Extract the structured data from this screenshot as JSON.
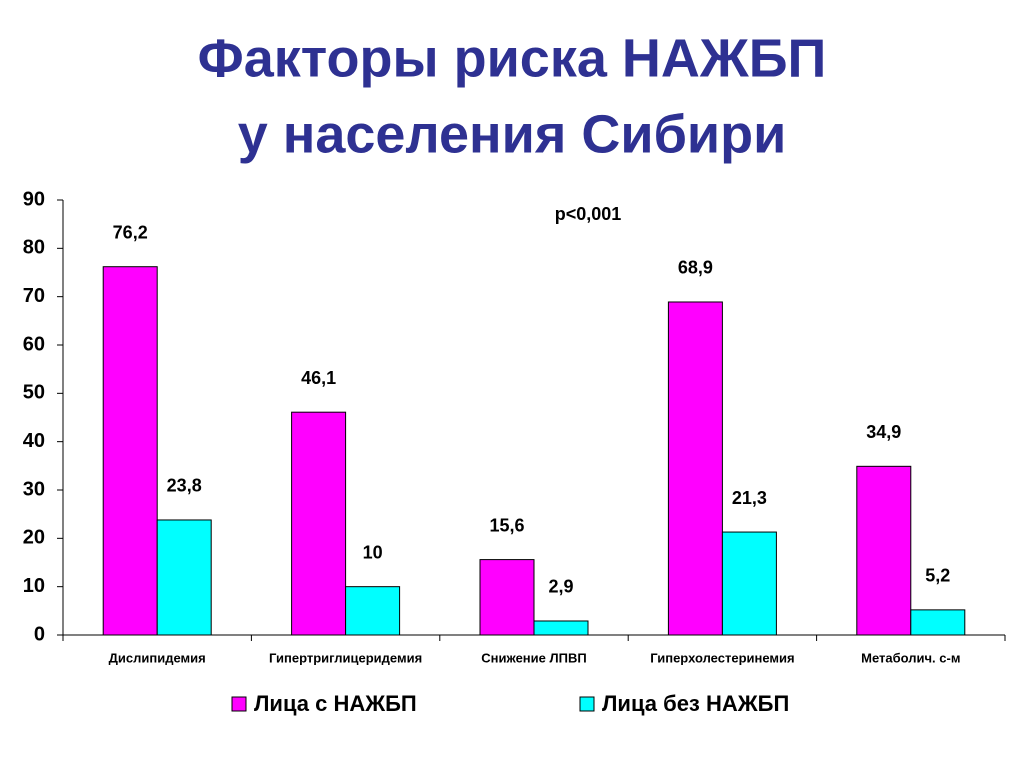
{
  "chart_data": {
    "type": "bar",
    "title": [
      "Факторы риска НАЖБП",
      "у населения Сибири"
    ],
    "annotation": "p<0,001",
    "categories": [
      "Дислипидемия",
      "Гипертриглицеридемия",
      "Снижение ЛПВП",
      "Гиперхолестеринемия",
      "Метаболич. с-м"
    ],
    "series": [
      {
        "name": "Лица с НАЖБП",
        "color": "#ff00ff",
        "values": [
          76.2,
          46.1,
          15.6,
          68.9,
          34.9
        ],
        "value_labels": [
          "76,2",
          "46,1",
          "15,6",
          "68,9",
          "34,9"
        ]
      },
      {
        "name": "Лица без НАЖБП",
        "color": "#00ffff",
        "values": [
          23.8,
          10,
          2.9,
          21.3,
          5.2
        ],
        "value_labels": [
          "23,8",
          "10",
          "2,9",
          "21,3",
          "5,2"
        ]
      }
    ],
    "ylim": [
      0,
      90
    ],
    "yticks": [
      0,
      10,
      20,
      30,
      40,
      50,
      60,
      70,
      80,
      90
    ],
    "grid": false,
    "legend": "bottom"
  }
}
